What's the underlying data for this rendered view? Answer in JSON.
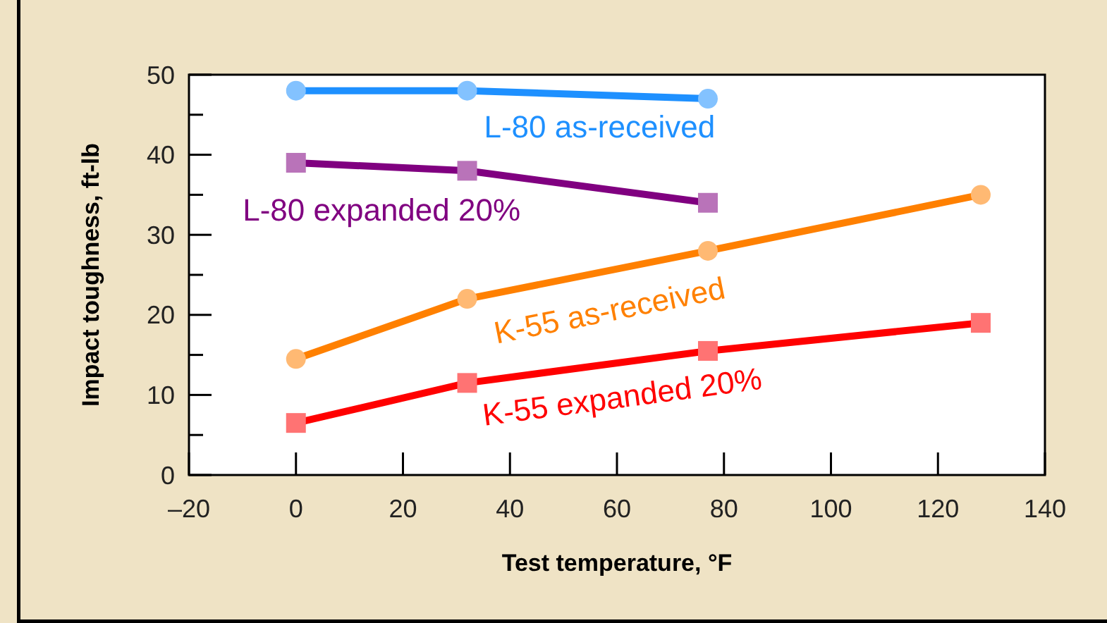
{
  "chart_data": {
    "type": "line",
    "xlabel": "Test temperature, °F",
    "ylabel": "Impact toughness, ft-lb",
    "xlim": [
      -20,
      140
    ],
    "xticks": [
      {
        "value": -20,
        "label": "–20"
      },
      0,
      20,
      40,
      60,
      80,
      100,
      120,
      140
    ],
    "ylim": [
      0,
      50
    ],
    "yticks": [
      0,
      {
        "value": 5,
        "label": null
      },
      10,
      {
        "value": 15,
        "label": null
      },
      20,
      {
        "value": 25,
        "label": null
      },
      30,
      {
        "value": 35,
        "label": null
      },
      40,
      {
        "value": 45,
        "label": null
      },
      50
    ],
    "grid": false,
    "legend": false,
    "line_style": "solid",
    "series": [
      {
        "name": "L-80 as-received",
        "color": "#1e90ff",
        "marker": "circle",
        "x": [
          0,
          32,
          77
        ],
        "values": [
          48,
          48,
          47
        ]
      },
      {
        "name": "L-80 expanded 20%",
        "color": "#800080",
        "marker": "square",
        "x": [
          0,
          32,
          77
        ],
        "values": [
          39,
          38,
          34
        ]
      },
      {
        "name": "K-55 as-received",
        "color": "#ff8000",
        "marker": "circle",
        "x": [
          0,
          32,
          77,
          128
        ],
        "values": [
          14.5,
          22,
          28,
          35
        ]
      },
      {
        "name": "K-55 expanded 20%",
        "color": "#ff0000",
        "marker": "square",
        "x": [
          0,
          32,
          77,
          128
        ],
        "values": [
          6.5,
          11.5,
          15.5,
          19
        ]
      }
    ]
  }
}
